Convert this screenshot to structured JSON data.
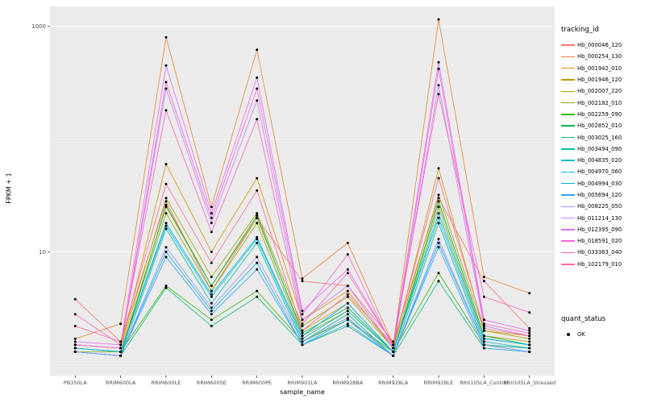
{
  "chart_data": {
    "type": "line",
    "title": "",
    "xlabel": "sample_name",
    "ylabel": "FPKM + 1",
    "y_scale": "log10",
    "ylim": [
      0.8,
      1500
    ],
    "grid": true,
    "panel_bg": "#EBEBEB",
    "grid_color": "#FFFFFF",
    "point_color": "#000000",
    "y_ticks": [
      {
        "v": 10,
        "label": "10"
      },
      {
        "v": 1000,
        "label": "1000"
      }
    ],
    "y_minor": [
      1,
      100
    ],
    "categories": [
      "PB350LA",
      "RRIM600LA",
      "RRIM600LE",
      "RRIM600SE",
      "RRIM600PE",
      "RRIM901LA",
      "RRIM928BA",
      "RRIM928LA",
      "RRIM928LE",
      "RRII105LA_Control",
      "RRII105LA_Stressed"
    ],
    "series": [
      {
        "name": "Hb_000046_120",
        "color": "#F8766D",
        "values": [
          3.8,
          1.6,
          28,
          4.5,
          20,
          5.5,
          5.0,
          1.6,
          30,
          5.5,
          2.1
        ]
      },
      {
        "name": "Hb_000254_130",
        "color": "#EA8331",
        "values": [
          1.7,
          2.3,
          800,
          25,
          620,
          5.8,
          12,
          1.5,
          1150,
          6.0,
          4.3
        ]
      },
      {
        "name": "Hb_001942_010",
        "color": "#D89000",
        "values": [
          1.5,
          1.4,
          60,
          10,
          45,
          2.5,
          4.5,
          1.4,
          55,
          2.0,
          1.8
        ]
      },
      {
        "name": "Hb_001946_120",
        "color": "#C09B00",
        "values": [
          1.4,
          1.3,
          25,
          5.0,
          20,
          2.0,
          3.5,
          1.3,
          28,
          1.8,
          1.6
        ]
      },
      {
        "name": "Hb_002007_220",
        "color": "#A3A500",
        "values": [
          1.5,
          1.4,
          30,
          6.0,
          22,
          2.2,
          4.0,
          1.4,
          32,
          2.0,
          1.7
        ]
      },
      {
        "name": "Hb_002182_010",
        "color": "#7CAE00",
        "values": [
          1.3,
          1.3,
          22,
          4.5,
          18,
          1.8,
          3.0,
          1.3,
          25,
          1.7,
          1.5
        ]
      },
      {
        "name": "Hb_002259_090",
        "color": "#39B600",
        "values": [
          1.4,
          1.3,
          5.0,
          2.5,
          4.5,
          1.6,
          2.5,
          1.3,
          6.5,
          1.5,
          1.4
        ]
      },
      {
        "name": "Hb_002852_010",
        "color": "#00BB4E",
        "values": [
          1.3,
          1.2,
          26,
          5.0,
          21,
          1.9,
          3.2,
          1.3,
          28,
          1.8,
          1.5
        ]
      },
      {
        "name": "Hb_003025_160",
        "color": "#00BF7D",
        "values": [
          1.3,
          1.2,
          4.8,
          2.2,
          4.0,
          1.5,
          2.2,
          1.2,
          5.5,
          1.4,
          1.3
        ]
      },
      {
        "name": "Hb_003494_090",
        "color": "#00C1A3",
        "values": [
          1.3,
          1.2,
          16,
          3.5,
          12,
          1.6,
          2.8,
          1.2,
          18,
          1.5,
          1.4
        ]
      },
      {
        "name": "Hb_004835_020",
        "color": "#00BFC4",
        "values": [
          1.4,
          1.3,
          17,
          4.0,
          13,
          1.7,
          3.0,
          1.3,
          20,
          1.6,
          1.4
        ]
      },
      {
        "name": "Hb_004970_060",
        "color": "#00BAE0",
        "values": [
          1.3,
          1.2,
          10,
          3.0,
          8.0,
          1.5,
          2.5,
          1.2,
          12,
          1.5,
          1.3
        ]
      },
      {
        "name": "Hb_004994_030",
        "color": "#00B0F6",
        "values": [
          1.4,
          1.3,
          18,
          4.2,
          13.5,
          1.8,
          3.5,
          1.3,
          22,
          1.7,
          1.5
        ]
      },
      {
        "name": "Hb_005694_120",
        "color": "#35A2FF",
        "values": [
          1.3,
          1.2,
          9.0,
          2.8,
          7.0,
          1.5,
          2.3,
          1.2,
          11,
          1.4,
          1.3
        ]
      },
      {
        "name": "Hb_008225_050",
        "color": "#9590FF",
        "values": [
          1.3,
          1.2,
          11,
          3.2,
          9.0,
          1.6,
          2.6,
          1.2,
          13,
          1.5,
          1.3
        ]
      },
      {
        "name": "Hb_011214_130",
        "color": "#C77CFF",
        "values": [
          1.5,
          1.4,
          280,
          18,
          220,
          2.5,
          5.0,
          1.4,
          300,
          2.2,
          1.8
        ]
      },
      {
        "name": "Hb_012395_090",
        "color": "#E76BF3",
        "values": [
          1.6,
          1.5,
          450,
          22,
          350,
          3.0,
          7.0,
          1.5,
          480,
          2.5,
          2.0
        ]
      },
      {
        "name": "Hb_018591_020",
        "color": "#FA62DB",
        "values": [
          1.5,
          1.4,
          320,
          20,
          280,
          2.8,
          9.5,
          1.4,
          420,
          2.3,
          1.9
        ]
      },
      {
        "name": "Hb_033363_040",
        "color": "#FF62BC",
        "values": [
          2.8,
          1.5,
          180,
          15,
          150,
          2.3,
          6.5,
          1.5,
          250,
          4.0,
          2.9
        ]
      },
      {
        "name": "Hb_102179_010",
        "color": "#FF6A98",
        "values": [
          2.2,
          1.6,
          40,
          8.0,
          35,
          2.0,
          4.2,
          1.5,
          45,
          2.1,
          1.8
        ]
      }
    ]
  },
  "legend": {
    "tracking_title": "tracking_id",
    "quant_title": "quant_status",
    "quant_items": [
      {
        "label": "OK",
        "color": "#000000"
      }
    ]
  }
}
